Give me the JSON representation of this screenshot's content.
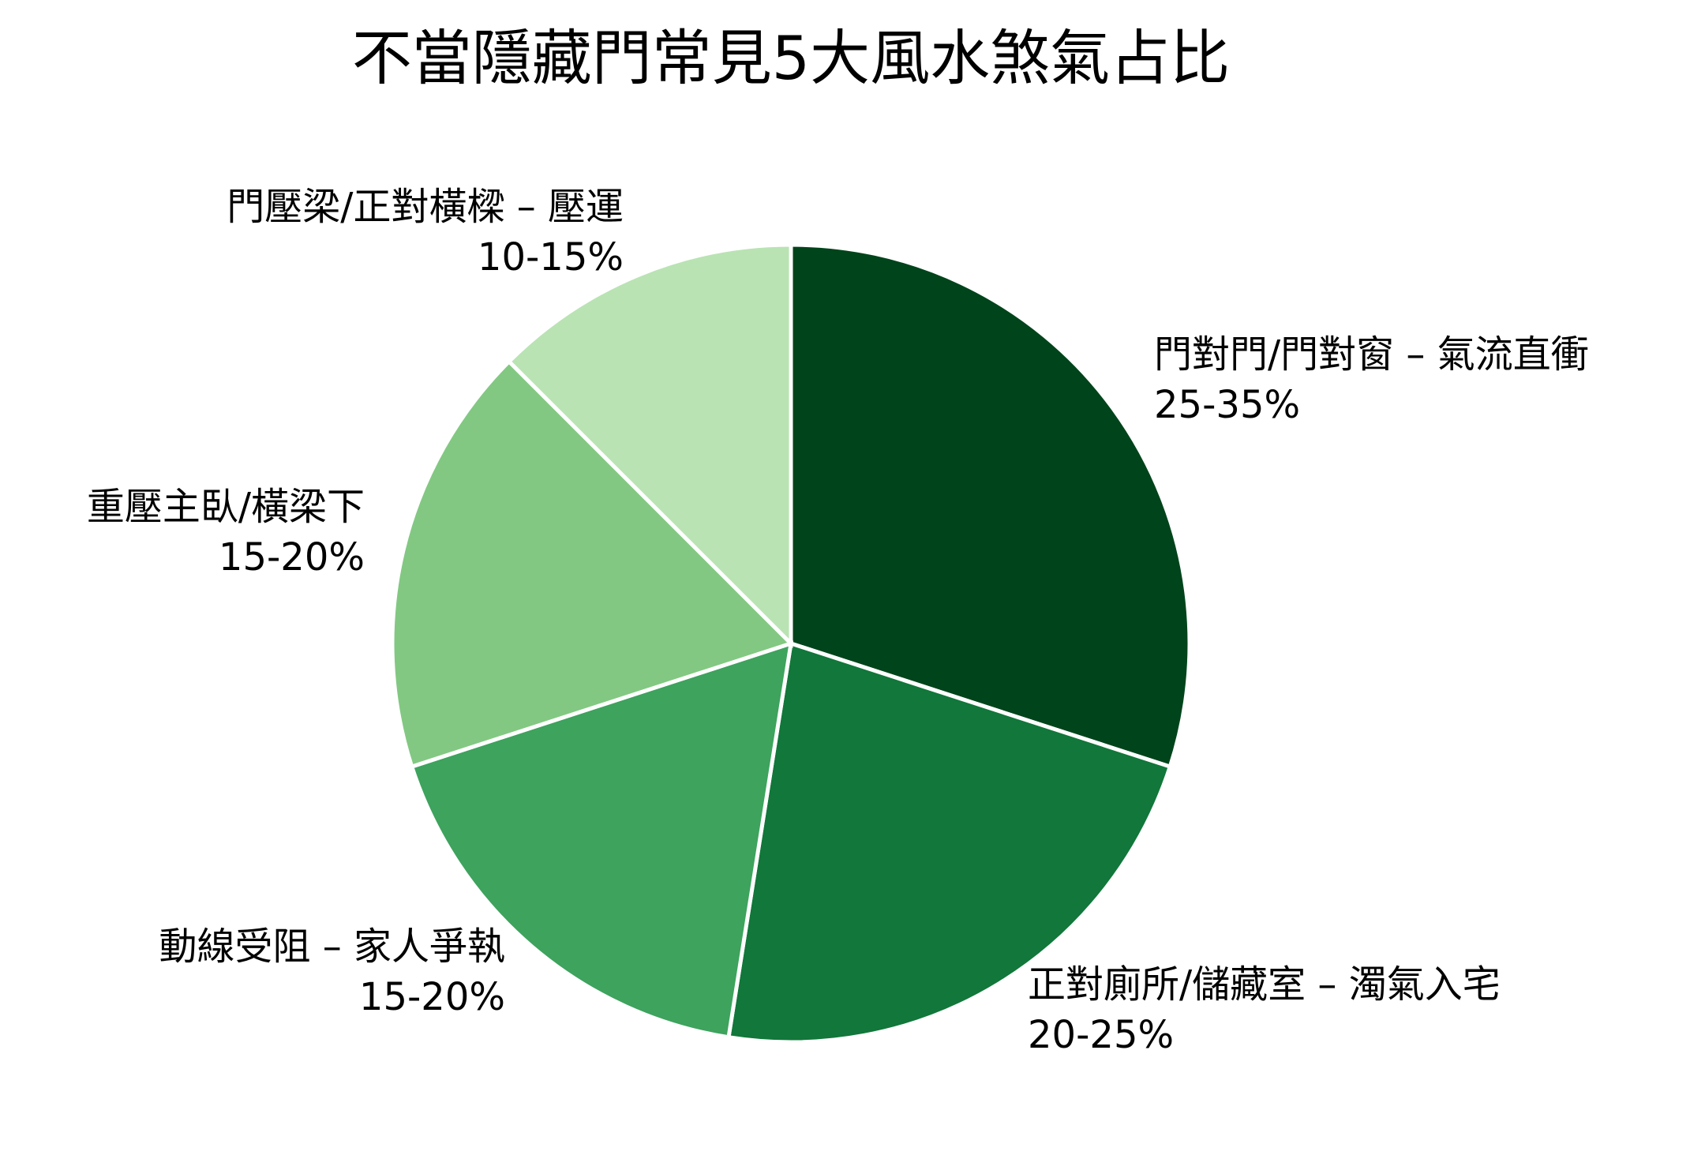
{
  "chart_data": {
    "type": "pie",
    "title": "不當隱藏門常見5大風水煞氣占比",
    "start_angle_deg": 0,
    "direction": "clockwise",
    "slices": [
      {
        "label": "門對門/門對窗 – 氣流直衝",
        "range_text": "25-35%",
        "value": 30,
        "color": "#00441b"
      },
      {
        "label": "正對廁所/儲藏室 – 濁氣入宅",
        "range_text": "20-25%",
        "value": 22.5,
        "color": "#11773a"
      },
      {
        "label": "動線受阻 – 家人爭執",
        "range_text": "15-20%",
        "value": 17.5,
        "color": "#3da35d"
      },
      {
        "label": "重壓主臥/橫梁下",
        "range_text": "15-20%",
        "value": 17.5,
        "color": "#82c882"
      },
      {
        "label": "門壓梁/正對橫樑 – 壓運",
        "range_text": "10-15%",
        "value": 12.5,
        "color": "#b9e3b3"
      }
    ]
  }
}
